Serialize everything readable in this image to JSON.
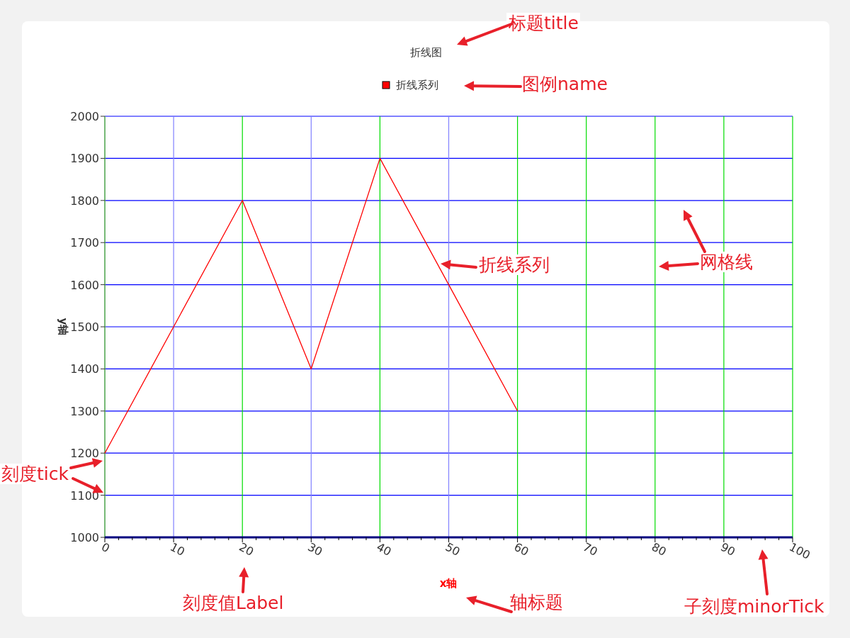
{
  "chart_data": {
    "type": "line",
    "title": "折线图",
    "xlabel": "x轴",
    "ylabel": "y轴",
    "x": [
      0,
      10,
      20,
      30,
      40,
      50,
      60
    ],
    "series": [
      {
        "name": "折线系列",
        "color": "#ff0000",
        "values": [
          1200,
          1500,
          1800,
          1400,
          1900,
          1600,
          1300
        ]
      }
    ],
    "xlim": [
      0,
      100
    ],
    "xticks": [
      0,
      10,
      20,
      30,
      40,
      50,
      60,
      70,
      80,
      90,
      100
    ],
    "ylim": [
      1000,
      2000
    ],
    "yticks": [
      1000,
      1100,
      1200,
      1300,
      1400,
      1500,
      1600,
      1700,
      1800,
      1900,
      2000
    ],
    "grid": true,
    "legend": "top",
    "marker": "none",
    "line_style": "solid",
    "annotations": [
      "标题title",
      "图例name",
      "折线系列",
      "网格线",
      "刻度tick",
      "刻度值Label",
      "轴标题",
      "子刻度minorTick"
    ]
  }
}
